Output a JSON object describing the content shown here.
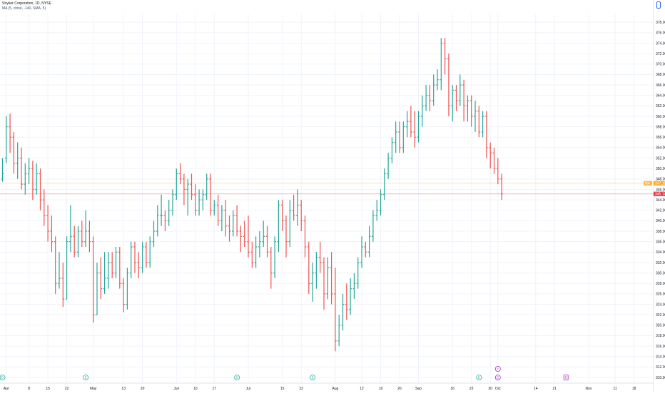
{
  "header": {
    "title": "Stryker Corporation, 1D, NYSE",
    "indicator": "MA (5, close, -140, SMA, 5)"
  },
  "colors": {
    "up": "#26a69a",
    "down": "#ef5350",
    "grid": "#f0f3fa",
    "axis_text": "#131722",
    "event_green": "#26a69a",
    "event_purple": "#9c27b0",
    "price_tag": "#f23645",
    "ma_tag": "#ffa726"
  },
  "chart_data": {
    "type": "ohlc-bar",
    "y_axis": {
      "range": [
        309,
        379
      ],
      "ticks": [
        "310.00",
        "312.00",
        "314.00",
        "316.00",
        "318.00",
        "320.00",
        "322.00",
        "324.00",
        "326.00",
        "328.00",
        "330.00",
        "332.00",
        "334.00",
        "336.00",
        "338.00",
        "340.00",
        "342.00",
        "344.00",
        "346.00",
        "348.00",
        "350.00",
        "352.00",
        "354.00",
        "356.00",
        "358.00",
        "360.00",
        "362.00",
        "364.00",
        "366.00",
        "368.00",
        "370.00",
        "372.00",
        "374.00",
        "376.00",
        "378.00"
      ]
    },
    "x_axis": {
      "labels": [
        {
          "text": "Apr",
          "bar": 1
        },
        {
          "text": "8",
          "bar": 7
        },
        {
          "text": "15",
          "bar": 12
        },
        {
          "text": "22",
          "bar": 17
        },
        {
          "text": "May",
          "bar": 24
        },
        {
          "text": "13",
          "bar": 32
        },
        {
          "text": "20",
          "bar": 37
        },
        {
          "text": "Jun",
          "bar": 46
        },
        {
          "text": "10",
          "bar": 51
        },
        {
          "text": "17",
          "bar": 56
        },
        {
          "text": "Jul",
          "bar": 65
        },
        {
          "text": "15",
          "bar": 74
        },
        {
          "text": "22",
          "bar": 79
        },
        {
          "text": "Aug",
          "bar": 88
        },
        {
          "text": "12",
          "bar": 95
        },
        {
          "text": "19",
          "bar": 100
        },
        {
          "text": "26",
          "bar": 105
        },
        {
          "text": "Sep",
          "bar": 110
        },
        {
          "text": "16",
          "bar": 119
        },
        {
          "text": "23",
          "bar": 124
        },
        {
          "text": "30",
          "bar": 129
        },
        {
          "text": "Oct",
          "bar": 131
        },
        {
          "text": "14",
          "bar": 141
        },
        {
          "text": "21",
          "bar": 146
        },
        {
          "text": "Nov",
          "bar": 155
        },
        {
          "text": "11",
          "bar": 162
        },
        {
          "text": "18",
          "bar": 167
        }
      ]
    },
    "last_price": {
      "value": 345.14,
      "label": "345.14"
    },
    "ma_value": {
      "value": 347.18,
      "label": "347.18",
      "prefix": "MA"
    },
    "ohlc": [
      {
        "o": 348.0,
        "h": 352.0,
        "l": 347.5,
        "c": 349.0
      },
      {
        "o": 352.0,
        "h": 360.0,
        "l": 351.0,
        "c": 358.0
      },
      {
        "o": 358.0,
        "h": 360.5,
        "l": 353.0,
        "c": 356.0
      },
      {
        "o": 356.0,
        "h": 357.0,
        "l": 349.0,
        "c": 351.0
      },
      {
        "o": 351.0,
        "h": 355.0,
        "l": 348.0,
        "c": 352.0
      },
      {
        "o": 352.0,
        "h": 354.0,
        "l": 346.0,
        "c": 347.0
      },
      {
        "o": 347.0,
        "h": 351.0,
        "l": 345.0,
        "c": 349.0
      },
      {
        "o": 349.0,
        "h": 352.0,
        "l": 347.0,
        "c": 350.0
      },
      {
        "o": 350.0,
        "h": 351.5,
        "l": 344.0,
        "c": 346.0
      },
      {
        "o": 346.0,
        "h": 351.0,
        "l": 345.0,
        "c": 349.0
      },
      {
        "o": 349.0,
        "h": 350.0,
        "l": 342.0,
        "c": 344.0
      },
      {
        "o": 344.0,
        "h": 346.0,
        "l": 339.0,
        "c": 341.0
      },
      {
        "o": 341.0,
        "h": 343.0,
        "l": 336.0,
        "c": 338.0
      },
      {
        "o": 338.0,
        "h": 341.0,
        "l": 334.0,
        "c": 336.0
      },
      {
        "o": 336.0,
        "h": 337.0,
        "l": 326.0,
        "c": 328.0
      },
      {
        "o": 328.0,
        "h": 334.0,
        "l": 327.0,
        "c": 329.0
      },
      {
        "o": 329.0,
        "h": 332.0,
        "l": 323.5,
        "c": 325.0
      },
      {
        "o": 325.0,
        "h": 337.0,
        "l": 325.0,
        "c": 336.0
      },
      {
        "o": 336.0,
        "h": 343.0,
        "l": 334.0,
        "c": 337.0
      },
      {
        "o": 337.0,
        "h": 339.0,
        "l": 333.0,
        "c": 334.0
      },
      {
        "o": 334.0,
        "h": 339.0,
        "l": 333.0,
        "c": 338.0
      },
      {
        "o": 338.0,
        "h": 340.0,
        "l": 335.0,
        "c": 336.0
      },
      {
        "o": 336.0,
        "h": 342.0,
        "l": 335.0,
        "c": 338.0
      },
      {
        "o": 338.0,
        "h": 340.0,
        "l": 334.0,
        "c": 336.0
      },
      {
        "o": 336.0,
        "h": 337.0,
        "l": 320.5,
        "c": 322.0
      },
      {
        "o": 322.0,
        "h": 332.0,
        "l": 322.0,
        "c": 330.0
      },
      {
        "o": 330.0,
        "h": 333.0,
        "l": 325.0,
        "c": 327.0
      },
      {
        "o": 327.0,
        "h": 334.0,
        "l": 326.0,
        "c": 329.0
      },
      {
        "o": 329.0,
        "h": 334.0,
        "l": 327.0,
        "c": 332.0
      },
      {
        "o": 332.0,
        "h": 334.0,
        "l": 329.0,
        "c": 330.0
      },
      {
        "o": 330.0,
        "h": 335.0,
        "l": 329.0,
        "c": 334.0
      },
      {
        "o": 334.0,
        "h": 335.0,
        "l": 327.0,
        "c": 328.0
      },
      {
        "o": 328.0,
        "h": 329.0,
        "l": 322.5,
        "c": 324.0
      },
      {
        "o": 324.0,
        "h": 331.0,
        "l": 323.0,
        "c": 330.0
      },
      {
        "o": 330.0,
        "h": 336.0,
        "l": 329.0,
        "c": 335.0
      },
      {
        "o": 335.0,
        "h": 336.0,
        "l": 330.0,
        "c": 332.0
      },
      {
        "o": 332.0,
        "h": 334.0,
        "l": 329.0,
        "c": 331.0
      },
      {
        "o": 331.0,
        "h": 336.0,
        "l": 330.0,
        "c": 335.0
      },
      {
        "o": 335.0,
        "h": 336.0,
        "l": 331.0,
        "c": 332.0
      },
      {
        "o": 332.0,
        "h": 337.0,
        "l": 331.0,
        "c": 336.0
      },
      {
        "o": 336.0,
        "h": 340.0,
        "l": 335.0,
        "c": 338.0
      },
      {
        "o": 338.0,
        "h": 343.0,
        "l": 337.0,
        "c": 341.0
      },
      {
        "o": 341.0,
        "h": 345.0,
        "l": 339.0,
        "c": 341.0
      },
      {
        "o": 341.0,
        "h": 342.0,
        "l": 338.0,
        "c": 340.0
      },
      {
        "o": 340.0,
        "h": 344.0,
        "l": 339.0,
        "c": 342.0
      },
      {
        "o": 342.0,
        "h": 346.0,
        "l": 341.0,
        "c": 345.0
      },
      {
        "o": 345.0,
        "h": 350.0,
        "l": 344.0,
        "c": 349.0
      },
      {
        "o": 349.0,
        "h": 351.0,
        "l": 347.0,
        "c": 348.0
      },
      {
        "o": 348.0,
        "h": 349.0,
        "l": 343.0,
        "c": 346.0
      },
      {
        "o": 346.0,
        "h": 348.0,
        "l": 341.0,
        "c": 347.0
      },
      {
        "o": 347.0,
        "h": 349.0,
        "l": 344.0,
        "c": 345.0
      },
      {
        "o": 345.0,
        "h": 347.0,
        "l": 341.0,
        "c": 342.0
      },
      {
        "o": 342.0,
        "h": 346.0,
        "l": 341.0,
        "c": 344.0
      },
      {
        "o": 344.0,
        "h": 346.0,
        "l": 342.0,
        "c": 345.0
      },
      {
        "o": 345.0,
        "h": 349.0,
        "l": 344.0,
        "c": 348.0
      },
      {
        "o": 348.0,
        "h": 349.0,
        "l": 341.0,
        "c": 342.0
      },
      {
        "o": 342.0,
        "h": 344.0,
        "l": 341.0,
        "c": 343.0
      },
      {
        "o": 343.0,
        "h": 345.0,
        "l": 339.0,
        "c": 340.0
      },
      {
        "o": 340.0,
        "h": 343.0,
        "l": 338.0,
        "c": 342.0
      },
      {
        "o": 342.0,
        "h": 344.0,
        "l": 337.0,
        "c": 339.0
      },
      {
        "o": 339.0,
        "h": 341.0,
        "l": 336.0,
        "c": 338.0
      },
      {
        "o": 338.0,
        "h": 342.0,
        "l": 337.0,
        "c": 341.0
      },
      {
        "o": 341.0,
        "h": 343.0,
        "l": 337.0,
        "c": 338.0
      },
      {
        "o": 338.0,
        "h": 339.0,
        "l": 334.0,
        "c": 337.0
      },
      {
        "o": 337.0,
        "h": 340.0,
        "l": 335.0,
        "c": 336.0
      },
      {
        "o": 336.0,
        "h": 341.0,
        "l": 333.0,
        "c": 334.0
      },
      {
        "o": 334.0,
        "h": 336.0,
        "l": 331.0,
        "c": 332.0
      },
      {
        "o": 332.0,
        "h": 337.0,
        "l": 331.0,
        "c": 335.0
      },
      {
        "o": 335.0,
        "h": 338.0,
        "l": 333.0,
        "c": 336.0
      },
      {
        "o": 336.0,
        "h": 340.0,
        "l": 335.0,
        "c": 337.0
      },
      {
        "o": 337.0,
        "h": 339.0,
        "l": 333.0,
        "c": 334.0
      },
      {
        "o": 334.0,
        "h": 335.0,
        "l": 327.0,
        "c": 330.0
      },
      {
        "o": 330.0,
        "h": 337.0,
        "l": 329.0,
        "c": 336.0
      },
      {
        "o": 336.0,
        "h": 344.0,
        "l": 334.0,
        "c": 343.0
      },
      {
        "o": 343.0,
        "h": 344.0,
        "l": 338.0,
        "c": 340.0
      },
      {
        "o": 340.0,
        "h": 341.0,
        "l": 333.0,
        "c": 336.0
      },
      {
        "o": 336.0,
        "h": 344.0,
        "l": 335.0,
        "c": 342.0
      },
      {
        "o": 342.0,
        "h": 345.0,
        "l": 340.0,
        "c": 341.0
      },
      {
        "o": 341.0,
        "h": 346.0,
        "l": 339.0,
        "c": 343.0
      },
      {
        "o": 343.0,
        "h": 344.0,
        "l": 338.0,
        "c": 340.0
      },
      {
        "o": 340.0,
        "h": 341.0,
        "l": 333.0,
        "c": 335.0
      },
      {
        "o": 335.0,
        "h": 336.0,
        "l": 326.0,
        "c": 328.0
      },
      {
        "o": 328.0,
        "h": 332.0,
        "l": 324.5,
        "c": 330.0
      },
      {
        "o": 330.0,
        "h": 334.0,
        "l": 327.0,
        "c": 333.0
      },
      {
        "o": 333.0,
        "h": 336.0,
        "l": 330.0,
        "c": 332.0
      },
      {
        "o": 332.0,
        "h": 333.0,
        "l": 323.0,
        "c": 326.0
      },
      {
        "o": 326.0,
        "h": 333.0,
        "l": 325.0,
        "c": 331.0
      },
      {
        "o": 331.0,
        "h": 334.0,
        "l": 324.0,
        "c": 326.0
      },
      {
        "o": 326.0,
        "h": 331.0,
        "l": 315.0,
        "c": 317.0
      },
      {
        "o": 317.0,
        "h": 322.0,
        "l": 316.0,
        "c": 320.0
      },
      {
        "o": 320.0,
        "h": 326.0,
        "l": 319.0,
        "c": 324.0
      },
      {
        "o": 324.0,
        "h": 328.0,
        "l": 321.0,
        "c": 323.0
      },
      {
        "o": 323.0,
        "h": 329.0,
        "l": 322.0,
        "c": 327.0
      },
      {
        "o": 327.0,
        "h": 330.0,
        "l": 325.0,
        "c": 328.0
      },
      {
        "o": 328.0,
        "h": 333.0,
        "l": 327.0,
        "c": 332.0
      },
      {
        "o": 332.0,
        "h": 337.0,
        "l": 331.0,
        "c": 335.0
      },
      {
        "o": 335.0,
        "h": 336.0,
        "l": 333.0,
        "c": 334.0
      },
      {
        "o": 334.0,
        "h": 339.0,
        "l": 333.0,
        "c": 337.0
      },
      {
        "o": 337.0,
        "h": 342.0,
        "l": 336.0,
        "c": 341.0
      },
      {
        "o": 341.0,
        "h": 344.0,
        "l": 340.0,
        "c": 342.0
      },
      {
        "o": 342.0,
        "h": 346.0,
        "l": 341.0,
        "c": 345.0
      },
      {
        "o": 345.0,
        "h": 350.0,
        "l": 344.0,
        "c": 349.0
      },
      {
        "o": 349.0,
        "h": 353.0,
        "l": 348.0,
        "c": 352.0
      },
      {
        "o": 352.0,
        "h": 356.0,
        "l": 351.0,
        "c": 355.0
      },
      {
        "o": 355.0,
        "h": 359.0,
        "l": 353.0,
        "c": 357.0
      },
      {
        "o": 357.0,
        "h": 359.0,
        "l": 353.0,
        "c": 354.0
      },
      {
        "o": 354.0,
        "h": 359.0,
        "l": 353.0,
        "c": 358.0
      },
      {
        "o": 358.0,
        "h": 361.0,
        "l": 356.0,
        "c": 359.0
      },
      {
        "o": 359.0,
        "h": 362.0,
        "l": 356.0,
        "c": 357.0
      },
      {
        "o": 357.0,
        "h": 361.0,
        "l": 354.0,
        "c": 356.0
      },
      {
        "o": 356.0,
        "h": 361.0,
        "l": 355.0,
        "c": 360.0
      },
      {
        "o": 360.0,
        "h": 364.0,
        "l": 358.0,
        "c": 362.0
      },
      {
        "o": 362.0,
        "h": 366.0,
        "l": 361.0,
        "c": 364.0
      },
      {
        "o": 364.0,
        "h": 366.0,
        "l": 361.0,
        "c": 363.0
      },
      {
        "o": 363.0,
        "h": 368.0,
        "l": 362.0,
        "c": 366.0
      },
      {
        "o": 366.0,
        "h": 369.0,
        "l": 365.0,
        "c": 367.0
      },
      {
        "o": 367.0,
        "h": 375.0,
        "l": 365.0,
        "c": 374.0
      },
      {
        "o": 374.0,
        "h": 375.0,
        "l": 368.0,
        "c": 371.0
      },
      {
        "o": 371.0,
        "h": 372.0,
        "l": 360.0,
        "c": 362.0
      },
      {
        "o": 362.0,
        "h": 366.0,
        "l": 359.0,
        "c": 365.0
      },
      {
        "o": 365.0,
        "h": 366.0,
        "l": 361.0,
        "c": 363.0
      },
      {
        "o": 363.0,
        "h": 368.0,
        "l": 362.0,
        "c": 366.0
      },
      {
        "o": 366.0,
        "h": 367.0,
        "l": 359.0,
        "c": 362.0
      },
      {
        "o": 362.0,
        "h": 364.0,
        "l": 359.0,
        "c": 363.0
      },
      {
        "o": 363.0,
        "h": 364.0,
        "l": 358.0,
        "c": 360.0
      },
      {
        "o": 360.0,
        "h": 363.0,
        "l": 357.0,
        "c": 361.0
      },
      {
        "o": 361.0,
        "h": 362.0,
        "l": 356.0,
        "c": 357.0
      },
      {
        "o": 357.0,
        "h": 361.0,
        "l": 356.0,
        "c": 360.0
      },
      {
        "o": 360.0,
        "h": 361.0,
        "l": 352.0,
        "c": 354.0
      },
      {
        "o": 354.0,
        "h": 355.0,
        "l": 350.0,
        "c": 353.0
      },
      {
        "o": 353.0,
        "h": 354.0,
        "l": 349.0,
        "c": 350.0
      },
      {
        "o": 350.0,
        "h": 352.0,
        "l": 347.0,
        "c": 348.0
      },
      {
        "o": 348.0,
        "h": 349.0,
        "l": 344.0,
        "c": 345.14
      }
    ],
    "events": [
      {
        "bar": 0,
        "icon": "D",
        "color": "green"
      },
      {
        "bar": 22,
        "icon": "E",
        "color": "green"
      },
      {
        "bar": 62,
        "icon": "D",
        "color": "green"
      },
      {
        "bar": 82,
        "icon": "E",
        "color": "green"
      },
      {
        "bar": 126,
        "icon": "D",
        "color": "green"
      },
      {
        "bar": 131,
        "icon": "+",
        "color": "purple",
        "row": 1
      },
      {
        "bar": 131,
        "icon": "E",
        "color": "purple"
      },
      {
        "bar": 149,
        "icon": "E",
        "color": "purple",
        "shape": "square"
      }
    ]
  }
}
